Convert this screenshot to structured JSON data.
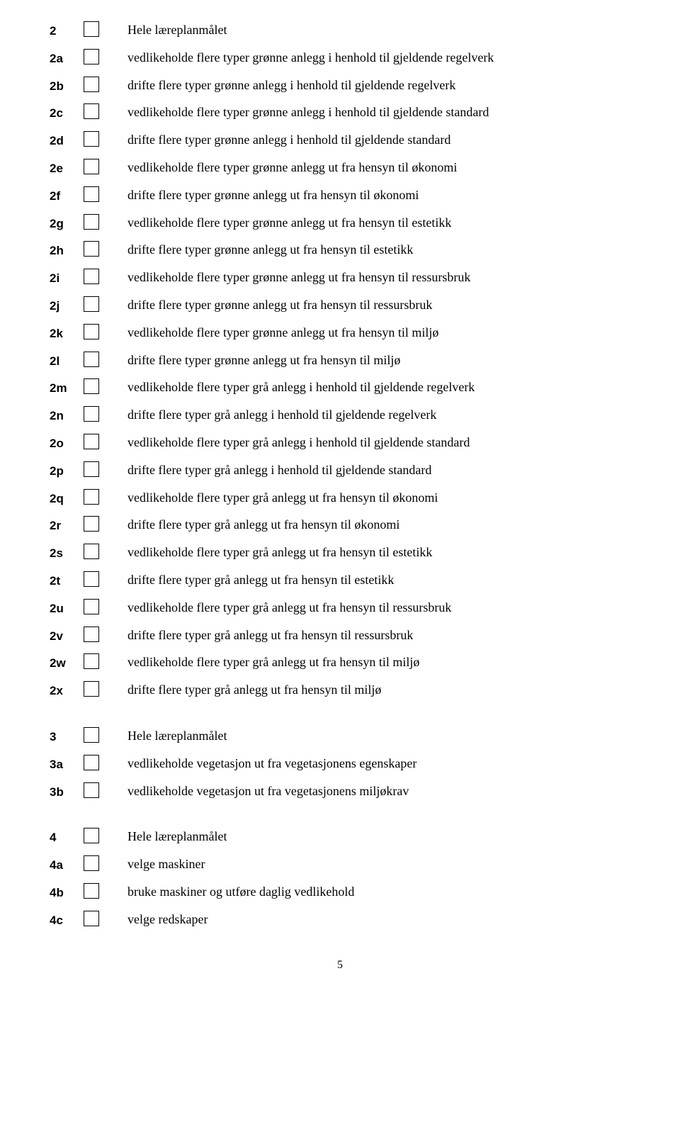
{
  "groups": [
    {
      "items": [
        {
          "id": "2",
          "text": "Hele læreplanmålet"
        },
        {
          "id": "2a",
          "text": "vedlikeholde flere typer grønne anlegg i henhold til gjeldende regelverk"
        },
        {
          "id": "2b",
          "text": "drifte flere typer grønne anlegg i henhold til gjeldende regelverk"
        },
        {
          "id": "2c",
          "text": "vedlikeholde flere typer grønne anlegg i henhold til gjeldende standard"
        },
        {
          "id": "2d",
          "text": "drifte flere typer grønne anlegg i henhold til gjeldende standard"
        },
        {
          "id": "2e",
          "text": "vedlikeholde flere typer grønne anlegg ut fra hensyn til økonomi"
        },
        {
          "id": "2f",
          "text": "drifte flere typer grønne anlegg ut fra hensyn til økonomi"
        },
        {
          "id": "2g",
          "text": "vedlikeholde flere typer grønne anlegg ut fra hensyn til estetikk"
        },
        {
          "id": "2h",
          "text": "drifte flere typer grønne anlegg ut fra hensyn til estetikk"
        },
        {
          "id": "2i",
          "text": "vedlikeholde flere typer grønne anlegg ut fra hensyn til ressursbruk"
        },
        {
          "id": "2j",
          "text": "drifte flere typer grønne anlegg ut fra hensyn til ressursbruk"
        },
        {
          "id": "2k",
          "text": "vedlikeholde flere typer grønne anlegg ut fra hensyn til miljø"
        },
        {
          "id": "2l",
          "text": "drifte flere typer grønne anlegg ut fra hensyn til miljø"
        },
        {
          "id": "2m",
          "text": "vedlikeholde flere typer grå anlegg i henhold til gjeldende regelverk"
        },
        {
          "id": "2n",
          "text": "drifte flere typer grå anlegg i henhold til gjeldende regelverk"
        },
        {
          "id": "2o",
          "text": "vedlikeholde flere typer grå anlegg i henhold til gjeldende standard"
        },
        {
          "id": "2p",
          "text": "drifte flere typer grå anlegg i henhold til gjeldende standard"
        },
        {
          "id": "2q",
          "text": "vedlikeholde flere typer grå anlegg ut fra hensyn til økonomi"
        },
        {
          "id": "2r",
          "text": "drifte flere typer grå anlegg ut fra hensyn til økonomi"
        },
        {
          "id": "2s",
          "text": "vedlikeholde flere typer grå anlegg ut fra hensyn til estetikk"
        },
        {
          "id": "2t",
          "text": "drifte flere typer grå anlegg ut fra hensyn til estetikk"
        },
        {
          "id": "2u",
          "text": "vedlikeholde flere typer grå anlegg ut fra hensyn til ressursbruk"
        },
        {
          "id": "2v",
          "text": "drifte flere typer grå anlegg ut fra hensyn til ressursbruk"
        },
        {
          "id": "2w",
          "text": "vedlikeholde flere typer grå anlegg ut fra hensyn til miljø"
        },
        {
          "id": "2x",
          "text": "drifte flere typer grå anlegg ut fra hensyn til miljø"
        }
      ]
    },
    {
      "items": [
        {
          "id": "3",
          "text": "Hele læreplanmålet"
        },
        {
          "id": "3a",
          "text": "vedlikeholde vegetasjon ut fra vegetasjonens egenskaper"
        },
        {
          "id": "3b",
          "text": "vedlikeholde vegetasjon ut fra vegetasjonens miljøkrav"
        }
      ]
    },
    {
      "items": [
        {
          "id": "4",
          "text": "Hele læreplanmålet"
        },
        {
          "id": "4a",
          "text": "velge maskiner"
        },
        {
          "id": "4b",
          "text": "bruke maskiner og utføre daglig vedlikehold"
        },
        {
          "id": "4c",
          "text": "velge redskaper"
        }
      ]
    }
  ],
  "pageNumber": "5"
}
